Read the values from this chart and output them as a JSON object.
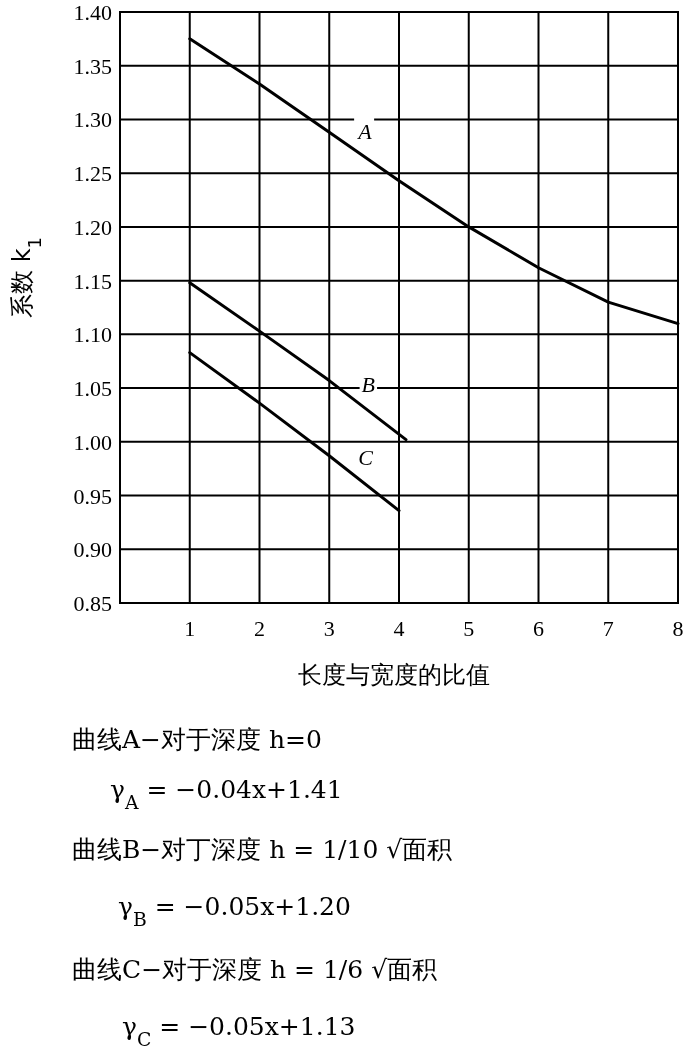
{
  "chart_data": {
    "type": "line",
    "xlabel": "长度与宽度的比值",
    "ylabel": "系数 k$_{1}$",
    "xlim": [
      0,
      8
    ],
    "xticks": [
      1,
      2,
      3,
      4,
      5,
      6,
      7,
      8
    ],
    "ylim": [
      0.85,
      1.4
    ],
    "yticks": [
      {
        "value": 0.85,
        "label": "0.85"
      },
      {
        "value": 0.9,
        "label": "0.90"
      },
      {
        "value": 0.95,
        "label": "0.95"
      },
      {
        "value": 1.0,
        "label": "1.00"
      },
      {
        "value": 1.05,
        "label": "1.05"
      },
      {
        "value": 1.1,
        "label": "1.10"
      },
      {
        "value": 1.15,
        "label": "1.15"
      },
      {
        "value": 1.2,
        "label": "1.20"
      },
      {
        "value": 1.25,
        "label": "1.25"
      },
      {
        "value": 1.3,
        "label": "1.30"
      },
      {
        "value": 1.35,
        "label": "1.35"
      },
      {
        "value": 1.4,
        "label": "1.40"
      }
    ],
    "grid": true,
    "series": [
      {
        "name": "A",
        "color": "#000000",
        "x": [
          1,
          2,
          3,
          4,
          5,
          6,
          7,
          8
        ],
        "values": [
          1.375,
          1.333,
          1.288,
          1.243,
          1.2,
          1.162,
          1.13,
          1.11
        ]
      },
      {
        "name": "B",
        "color": "#000000",
        "x": [
          1,
          2,
          3,
          4.1
        ],
        "values": [
          1.148,
          1.103,
          1.057,
          1.002
        ]
      },
      {
        "name": "C",
        "color": "#000000",
        "x": [
          1,
          2,
          3,
          4
        ],
        "values": [
          1.083,
          1.036,
          0.987,
          0.936
        ]
      }
    ],
    "annotations": [
      "曲线A−对于深度 h=0",
      "γ$_{A}$ = −0.04x+1.41",
      "曲线B−对丁深度 h = 1/10 √面积",
      "γ$_{B}$ = −0.05x+1.20",
      "曲线C−对于深度 h = 1/6 √面积",
      "γ$_{C}$ = −0.05x+1.13"
    ]
  }
}
